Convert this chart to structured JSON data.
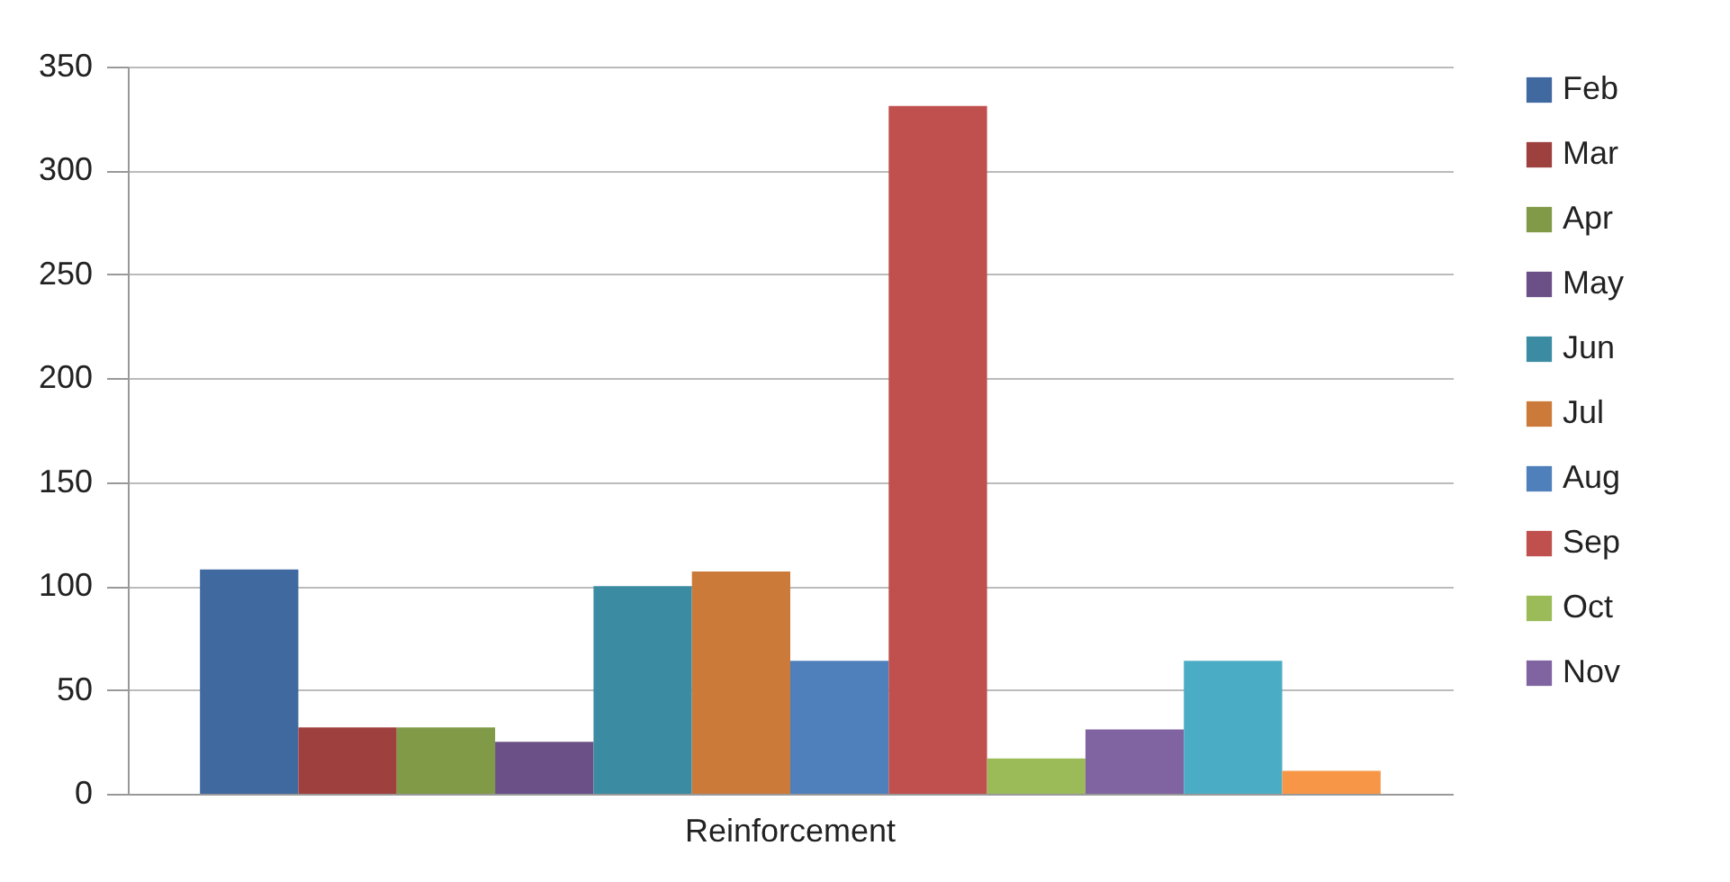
{
  "chart_data": {
    "type": "bar",
    "categories": [
      "Reinforcement"
    ],
    "series": [
      {
        "name": "Feb",
        "color": "#4069a0",
        "values": [
          108
        ]
      },
      {
        "name": "Mar",
        "color": "#9e403e",
        "values": [
          32
        ]
      },
      {
        "name": "Apr",
        "color": "#809a48",
        "values": [
          32
        ]
      },
      {
        "name": "May",
        "color": "#6a5087",
        "values": [
          25
        ]
      },
      {
        "name": "Jun",
        "color": "#3b8ba2",
        "values": [
          100
        ]
      },
      {
        "name": "Jul",
        "color": "#cc7a3a",
        "values": [
          107
        ]
      },
      {
        "name": "Aug",
        "color": "#4f80bb",
        "values": [
          64
        ]
      },
      {
        "name": "Sep",
        "color": "#c0504d",
        "values": [
          331
        ]
      },
      {
        "name": "Oct",
        "color": "#9bbb59",
        "values": [
          17
        ]
      },
      {
        "name": "Nov",
        "color": "#8064a2",
        "values": [
          31
        ]
      },
      {
        "color": "#4bacc6",
        "values": [
          64
        ]
      },
      {
        "color": "#f79646",
        "values": [
          11
        ]
      }
    ],
    "ylim": [
      0,
      350
    ],
    "yticks": [
      0,
      50,
      100,
      150,
      200,
      250,
      300,
      350
    ],
    "grid": "y",
    "legend": "right"
  }
}
